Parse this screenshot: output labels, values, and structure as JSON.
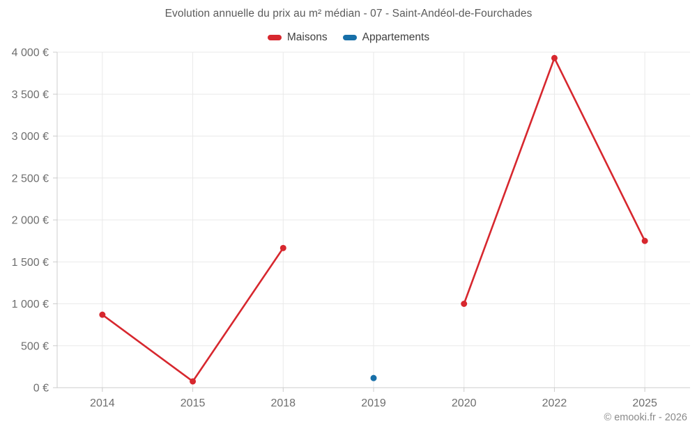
{
  "page": {
    "footer": "© emooki.fr - 2026"
  },
  "chart_data": {
    "type": "line",
    "title": "Evolution annuelle du prix au m² médian - 07 - Saint-Andéol-de-Fourchades",
    "categories": [
      "2014",
      "2015",
      "2018",
      "2019",
      "2020",
      "2022",
      "2025"
    ],
    "series": [
      {
        "name": "Maisons",
        "color": "#d7272e",
        "values": [
          870,
          75,
          1665,
          null,
          1000,
          3930,
          1750
        ]
      },
      {
        "name": "Appartements",
        "color": "#176fa8",
        "values": [
          null,
          null,
          null,
          115,
          null,
          null,
          null
        ]
      }
    ],
    "xlabel": "",
    "ylabel": "",
    "ylim": [
      0,
      4000
    ],
    "ytick_step": 500,
    "ytick_labels": [
      "0 €",
      "500 €",
      "1 000 €",
      "1 500 €",
      "2 000 €",
      "2 500 €",
      "3 000 €",
      "3 500 €",
      "4 000 €"
    ],
    "grid": true,
    "legend_position": "top",
    "footer": "© emooki.fr - 2026"
  },
  "colors": {
    "background": "#ffffff",
    "grid": "#e9e9e9",
    "axis": "#cccccc",
    "tick_text": "#6e6e6e",
    "title_text": "#5a5a5a",
    "legend_text": "#3f3f3f",
    "footer_text": "#8a8a8a"
  }
}
